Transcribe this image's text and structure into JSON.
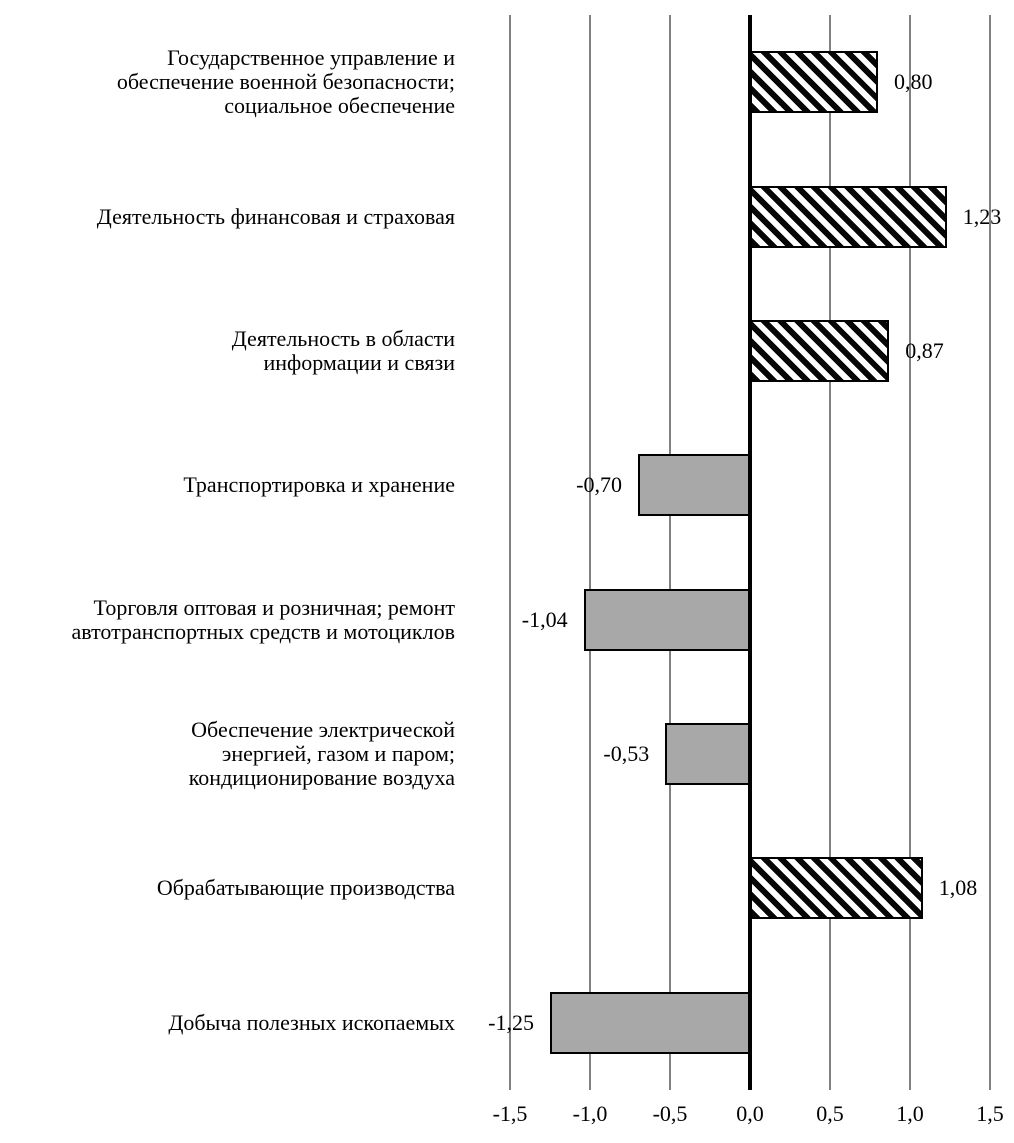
{
  "chart_data": {
    "type": "bar",
    "orientation": "horizontal",
    "title": "",
    "xlabel": "",
    "ylabel": "",
    "xlim": [
      -1.5,
      1.5
    ],
    "grid": true,
    "legend": "none",
    "x_ticks": [
      {
        "value": -1.5,
        "label": "-1,5"
      },
      {
        "value": -1.0,
        "label": "-1,0"
      },
      {
        "value": -0.5,
        "label": "-0,5"
      },
      {
        "value": 0.0,
        "label": "0,0"
      },
      {
        "value": 0.5,
        "label": "0,5"
      },
      {
        "value": 1.0,
        "label": "1,0"
      },
      {
        "value": 1.5,
        "label": "1,5"
      }
    ],
    "categories": [
      {
        "label": "Государственное управление и\nобеспечение военной безопасности;\nсоциальное обеспечение",
        "value": 0.8,
        "value_label": "0,80",
        "fill": "hatched"
      },
      {
        "label": "Деятельность финансовая и страховая",
        "value": 1.23,
        "value_label": "1,23",
        "fill": "hatched"
      },
      {
        "label": "Деятельность в области\nинформации и связи",
        "value": 0.87,
        "value_label": "0,87",
        "fill": "hatched"
      },
      {
        "label": "Транспортировка и хранение",
        "value": -0.7,
        "value_label": "-0,70",
        "fill": "gray"
      },
      {
        "label": "Торговля оптовая и розничная; ремонт\nавтотранспортных средств и мотоциклов",
        "value": -1.04,
        "value_label": "-1,04",
        "fill": "gray"
      },
      {
        "label": "Обеспечение электрической\nэнергией, газом и паром;\nкондиционирование воздуха",
        "value": -0.53,
        "value_label": "-0,53",
        "fill": "gray"
      },
      {
        "label": "Обрабатывающие производства",
        "value": 1.08,
        "value_label": "1,08",
        "fill": "hatched"
      },
      {
        "label": "Добыча полезных ископаемых",
        "value": -1.25,
        "value_label": "-1,25",
        "fill": "gray"
      }
    ],
    "colors": {
      "negative_bar_fill": "#a8a8a8",
      "bar_border": "#000000",
      "positive_bar_fill": "black-diagonal-hatch-on-white",
      "gridline": "#808080",
      "zero_axis": "#000000",
      "text": "#000000",
      "background": "#ffffff"
    }
  }
}
